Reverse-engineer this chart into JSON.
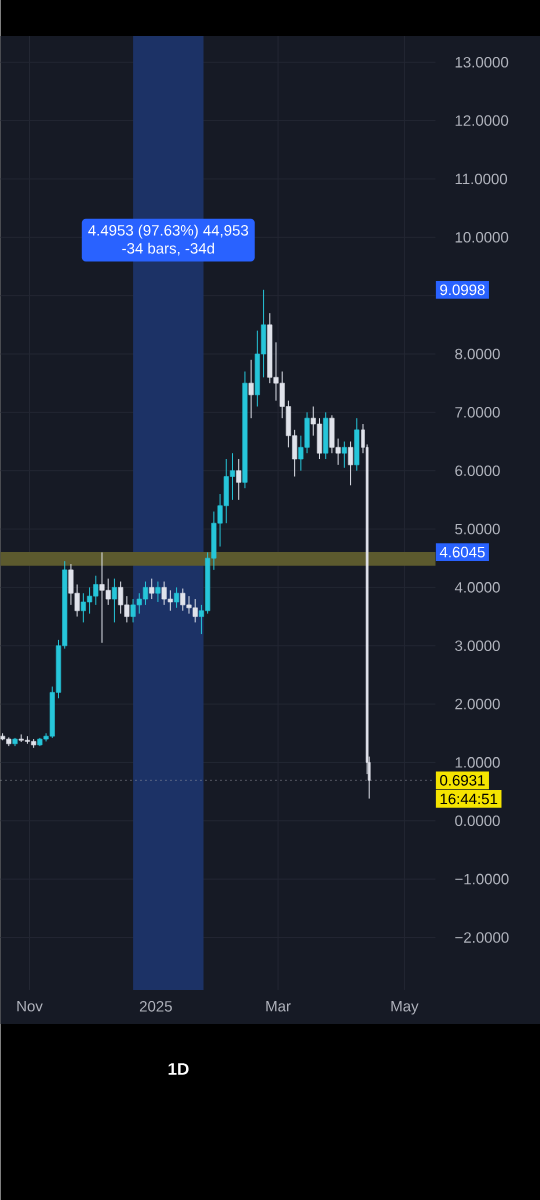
{
  "chart_data": {
    "type": "candlestick",
    "subtitle": "1D",
    "x": [
      "2024-10-19",
      "2024-10-22",
      "2024-10-25",
      "2024-10-28",
      "2024-10-31",
      "2024-11-03",
      "2024-11-06",
      "2024-11-09",
      "2024-11-12",
      "2024-11-15",
      "2024-11-18",
      "2024-11-21",
      "2024-11-24",
      "2024-11-27",
      "2024-11-30",
      "2024-12-03",
      "2024-12-06",
      "2024-12-09",
      "2024-12-12",
      "2024-12-15",
      "2024-12-18",
      "2024-12-21",
      "2024-12-24",
      "2024-12-27",
      "2024-12-30",
      "2025-01-02",
      "2025-01-05",
      "2025-01-08",
      "2025-01-11",
      "2025-01-14",
      "2025-01-17",
      "2025-01-20",
      "2025-01-23",
      "2025-01-26",
      "2025-01-29",
      "2025-02-01",
      "2025-02-04",
      "2025-02-07",
      "2025-02-10",
      "2025-02-13",
      "2025-02-16",
      "2025-02-19",
      "2025-02-22",
      "2025-02-25",
      "2025-02-28",
      "2025-03-03",
      "2025-03-06",
      "2025-03-09",
      "2025-03-12",
      "2025-03-15",
      "2025-03-18",
      "2025-03-21",
      "2025-03-24",
      "2025-03-27",
      "2025-03-30",
      "2025-04-02",
      "2025-04-05",
      "2025-04-08",
      "2025-04-11",
      "2025-04-13",
      "2025-04-14"
    ],
    "ohlc": [
      [
        1.45,
        1.5,
        1.38,
        1.4
      ],
      [
        1.4,
        1.43,
        1.28,
        1.32
      ],
      [
        1.32,
        1.42,
        1.28,
        1.4
      ],
      [
        1.4,
        1.48,
        1.35,
        1.38
      ],
      [
        1.38,
        1.45,
        1.32,
        1.36
      ],
      [
        1.36,
        1.4,
        1.25,
        1.3
      ],
      [
        1.3,
        1.42,
        1.28,
        1.4
      ],
      [
        1.4,
        1.5,
        1.36,
        1.45
      ],
      [
        1.45,
        2.3,
        1.42,
        2.2
      ],
      [
        2.2,
        3.1,
        2.1,
        3.0
      ],
      [
        3.0,
        4.45,
        2.95,
        4.3
      ],
      [
        4.3,
        4.4,
        3.7,
        3.9
      ],
      [
        3.9,
        4.05,
        3.5,
        3.6
      ],
      [
        3.6,
        3.9,
        3.4,
        3.75
      ],
      [
        3.75,
        4.0,
        3.55,
        3.85
      ],
      [
        3.85,
        4.2,
        3.7,
        4.05
      ],
      [
        4.05,
        4.6,
        3.05,
        3.95
      ],
      [
        3.95,
        4.15,
        3.7,
        3.8
      ],
      [
        3.8,
        4.15,
        3.4,
        4.0
      ],
      [
        4.0,
        4.1,
        3.55,
        3.7
      ],
      [
        3.7,
        3.85,
        3.4,
        3.5
      ],
      [
        3.5,
        3.8,
        3.4,
        3.7
      ],
      [
        3.7,
        3.9,
        3.55,
        3.8
      ],
      [
        3.8,
        4.1,
        3.7,
        4.0
      ],
      [
        4.0,
        4.15,
        3.8,
        3.9
      ],
      [
        3.9,
        4.1,
        3.75,
        4.0
      ],
      [
        4.0,
        4.1,
        3.7,
        3.8
      ],
      [
        3.8,
        3.95,
        3.6,
        3.75
      ],
      [
        3.75,
        4.0,
        3.65,
        3.9
      ],
      [
        3.9,
        3.98,
        3.6,
        3.7
      ],
      [
        3.7,
        3.85,
        3.55,
        3.65
      ],
      [
        3.65,
        3.8,
        3.4,
        3.5
      ],
      [
        3.5,
        3.7,
        3.2,
        3.6
      ],
      [
        3.6,
        4.6,
        3.55,
        4.5
      ],
      [
        4.5,
        5.3,
        4.3,
        5.1
      ],
      [
        5.1,
        5.6,
        4.7,
        5.4
      ],
      [
        5.4,
        6.2,
        5.1,
        5.9
      ],
      [
        5.9,
        6.3,
        5.5,
        6.0
      ],
      [
        6.0,
        6.2,
        5.5,
        5.8
      ],
      [
        5.8,
        7.7,
        5.7,
        7.5
      ],
      [
        7.5,
        7.9,
        6.9,
        7.3
      ],
      [
        7.3,
        8.4,
        7.1,
        8.0
      ],
      [
        8.0,
        9.0998,
        7.6,
        8.5
      ],
      [
        8.5,
        8.7,
        7.5,
        7.6
      ],
      [
        7.6,
        8.2,
        7.2,
        7.5
      ],
      [
        7.5,
        7.7,
        6.9,
        7.1
      ],
      [
        7.1,
        7.2,
        6.4,
        6.6
      ],
      [
        6.6,
        6.7,
        5.9,
        6.2
      ],
      [
        6.2,
        6.6,
        6.0,
        6.4
      ],
      [
        6.4,
        7.0,
        6.3,
        6.9
      ],
      [
        6.9,
        7.1,
        6.6,
        6.8
      ],
      [
        6.8,
        6.9,
        6.2,
        6.3
      ],
      [
        6.3,
        7.0,
        6.2,
        6.9
      ],
      [
        6.9,
        6.95,
        6.3,
        6.4
      ],
      [
        6.4,
        6.55,
        6.1,
        6.3
      ],
      [
        6.3,
        6.5,
        6.05,
        6.4
      ],
      [
        6.4,
        6.5,
        5.75,
        6.1
      ],
      [
        6.1,
        6.9,
        6.0,
        6.7
      ],
      [
        6.7,
        6.8,
        6.3,
        6.4
      ],
      [
        6.4,
        6.45,
        0.8,
        1.0
      ],
      [
        1.0,
        1.1,
        0.38,
        0.6931
      ]
    ],
    "colors": [
      "#e0e3eb",
      "#e0e3eb",
      "#26c6da",
      "#e0e3eb",
      "#e0e3eb",
      "#e0e3eb",
      "#26c6da",
      "#26c6da",
      "#26c6da",
      "#26c6da",
      "#26c6da",
      "#e0e3eb",
      "#e0e3eb",
      "#26c6da",
      "#26c6da",
      "#26c6da",
      "#e0e3eb",
      "#e0e3eb",
      "#26c6da",
      "#e0e3eb",
      "#e0e3eb",
      "#26c6da",
      "#26c6da",
      "#26c6da",
      "#e0e3eb",
      "#26c6da",
      "#e0e3eb",
      "#e0e3eb",
      "#26c6da",
      "#e0e3eb",
      "#e0e3eb",
      "#e0e3eb",
      "#26c6da",
      "#26c6da",
      "#26c6da",
      "#26c6da",
      "#26c6da",
      "#26c6da",
      "#e0e3eb",
      "#26c6da",
      "#e0e3eb",
      "#26c6da",
      "#26c6da",
      "#e0e3eb",
      "#e0e3eb",
      "#e0e3eb",
      "#e0e3eb",
      "#e0e3eb",
      "#26c6da",
      "#26c6da",
      "#e0e3eb",
      "#e0e3eb",
      "#26c6da",
      "#e0e3eb",
      "#e0e3eb",
      "#26c6da",
      "#e0e3eb",
      "#26c6da",
      "#e0e3eb",
      "#e0e3eb",
      "#e0e3eb"
    ],
    "xlim": [
      "2024-10-18",
      "2025-05-16"
    ],
    "xticks": [
      {
        "value": "2024-11-01",
        "label": "Nov"
      },
      {
        "value": "2025-01-01",
        "label": "2025"
      },
      {
        "value": "2025-03-01",
        "label": "Mar"
      },
      {
        "value": "2025-05-01",
        "label": "May"
      }
    ],
    "ylim": [
      -2.9,
      13.45
    ],
    "yticks": [
      {
        "value": -2,
        "label": "−2.0000"
      },
      {
        "value": -1,
        "label": "−1.0000"
      },
      {
        "value": 0,
        "label": "0.0000"
      },
      {
        "value": 1,
        "label": "1.0000"
      },
      {
        "value": 2,
        "label": "2.0000"
      },
      {
        "value": 3,
        "label": "3.0000"
      },
      {
        "value": 4,
        "label": "4.0000"
      },
      {
        "value": 5,
        "label": "5.0000"
      },
      {
        "value": 6,
        "label": "6.0000"
      },
      {
        "value": 7,
        "label": "7.0000"
      },
      {
        "value": 8,
        "label": "8.0000"
      },
      {
        "value": 9,
        "label": null
      },
      {
        "value": 10,
        "label": "10.0000"
      },
      {
        "value": 11,
        "label": "11.0000"
      },
      {
        "value": 12,
        "label": "12.0000"
      },
      {
        "value": 13,
        "label": "13.0000"
      }
    ],
    "grid": true,
    "bands": [
      {
        "axis": "x",
        "from": "2024-12-21",
        "to": "2025-01-24",
        "color": "#1c3266"
      },
      {
        "axis": "y",
        "from": 4.37,
        "to": 4.6045,
        "color": "#5c5a2e"
      }
    ],
    "ref_lines": [
      {
        "axis": "y",
        "value": 0.6931,
        "label": "0.6931",
        "color": "#9598a1",
        "line_style": "dotted"
      }
    ],
    "annotations": [
      "4.4953 (97.63%) 44,953",
      "-34 bars, -34d",
      "9.0998",
      "4.6045",
      "16:44:51"
    ]
  }
}
